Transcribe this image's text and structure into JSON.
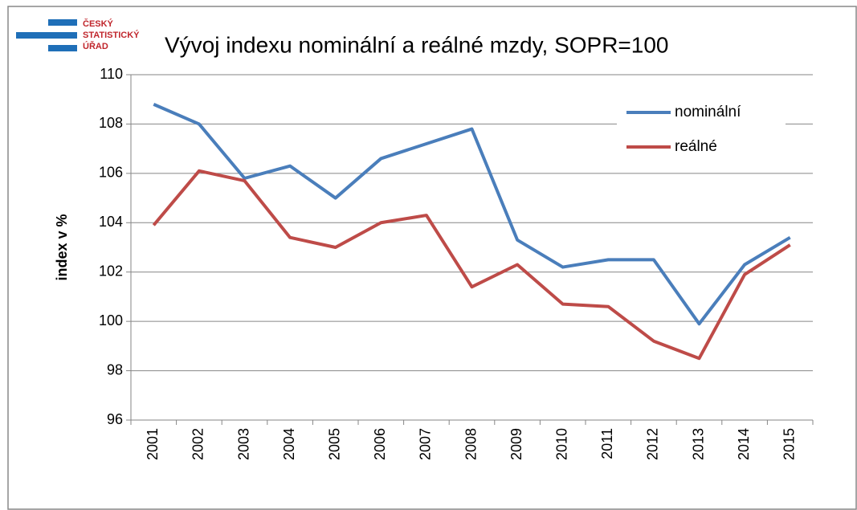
{
  "logo": {
    "lines": [
      "ČESKÝ",
      "STATISTICKÝ",
      "ÚŘAD"
    ]
  },
  "chart_data": {
    "type": "line",
    "title": "Vývoj indexu nominální a reálné mzdy, SOPR=100",
    "y_label": "index v %",
    "categories": [
      "2001",
      "2002",
      "2003",
      "2004",
      "2005",
      "2006",
      "2007",
      "2008",
      "2009",
      "2010",
      "2011",
      "2012",
      "2013",
      "2014",
      "2015"
    ],
    "series": [
      {
        "name": "nominální",
        "color": "#4a7ebb",
        "values": [
          108.8,
          108.0,
          105.8,
          106.3,
          105.0,
          106.6,
          107.2,
          107.8,
          103.3,
          102.2,
          102.5,
          102.5,
          99.9,
          102.3,
          103.4
        ]
      },
      {
        "name": "reálné",
        "color": "#be4b48",
        "values": [
          103.9,
          106.1,
          105.7,
          103.4,
          103.0,
          104.0,
          104.3,
          101.4,
          102.3,
          100.7,
          100.6,
          99.2,
          98.5,
          101.9,
          103.1
        ]
      }
    ],
    "ylim": [
      96,
      110
    ],
    "yticks": [
      96,
      98,
      100,
      102,
      104,
      106,
      108,
      110
    ],
    "grid": true
  }
}
